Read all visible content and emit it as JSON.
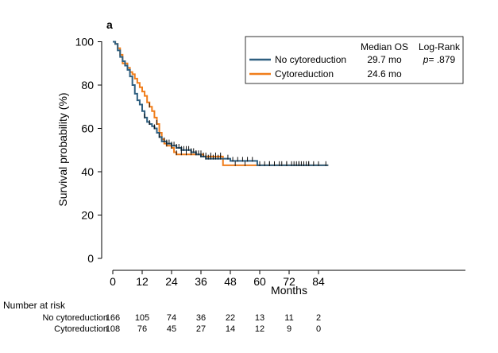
{
  "chart_data": {
    "type": "line",
    "panel_label": "a",
    "xlabel": "Months",
    "ylabel": "Survival probability (%)",
    "xlim": [
      0,
      88
    ],
    "ylim": [
      0,
      100
    ],
    "xticks": [
      0,
      12,
      24,
      36,
      48,
      60,
      72,
      84
    ],
    "yticks": [
      0,
      20,
      40,
      60,
      80,
      100
    ],
    "legend": {
      "position": "top-right",
      "header_median": "Median OS",
      "header_logrank": "Log-Rank",
      "p_label": "p",
      "p_value": "= .879"
    },
    "series": [
      {
        "name": "No cytoreduction",
        "color": "#2e5f80",
        "median": "29.7 mo",
        "steps": [
          [
            0,
            100
          ],
          [
            1,
            99
          ],
          [
            2,
            96
          ],
          [
            3,
            93
          ],
          [
            4,
            91
          ],
          [
            5,
            89
          ],
          [
            6,
            87
          ],
          [
            7,
            84
          ],
          [
            8,
            80
          ],
          [
            9,
            76
          ],
          [
            10,
            73
          ],
          [
            11,
            71
          ],
          [
            12,
            68
          ],
          [
            13,
            65
          ],
          [
            14,
            63
          ],
          [
            15,
            62
          ],
          [
            16,
            61
          ],
          [
            17,
            60
          ],
          [
            18,
            58
          ],
          [
            19,
            56
          ],
          [
            20,
            54
          ],
          [
            22,
            53
          ],
          [
            24,
            52
          ],
          [
            26,
            51
          ],
          [
            28,
            50
          ],
          [
            30,
            50
          ],
          [
            32,
            49
          ],
          [
            34,
            48
          ],
          [
            36,
            47
          ],
          [
            38,
            46
          ],
          [
            40,
            46
          ],
          [
            44,
            46
          ],
          [
            48,
            45
          ],
          [
            52,
            45
          ],
          [
            58,
            45
          ],
          [
            59,
            43
          ],
          [
            70,
            43
          ],
          [
            88,
            43
          ]
        ],
        "censor_times": [
          13,
          15,
          17,
          19,
          21,
          22,
          23,
          24,
          25,
          26,
          27,
          28,
          29,
          30,
          31,
          32,
          33,
          34,
          35,
          36,
          37,
          38,
          39,
          40,
          41,
          42,
          43,
          44,
          47,
          49,
          51,
          53,
          55,
          57,
          60,
          62,
          64,
          66,
          69,
          71,
          73,
          75,
          76,
          77,
          78,
          79,
          80,
          84,
          87
        ]
      },
      {
        "name": "Cytoreduction",
        "color": "#f07d1a",
        "median": "24.6 mo",
        "steps": [
          [
            0,
            100
          ],
          [
            1,
            99
          ],
          [
            2,
            97
          ],
          [
            3,
            94
          ],
          [
            4,
            90
          ],
          [
            6,
            88
          ],
          [
            7,
            86
          ],
          [
            8,
            85
          ],
          [
            9,
            83
          ],
          [
            10,
            81
          ],
          [
            11,
            79
          ],
          [
            12,
            77
          ],
          [
            13,
            75
          ],
          [
            14,
            72
          ],
          [
            15,
            70
          ],
          [
            16,
            68
          ],
          [
            17,
            65
          ],
          [
            18,
            62
          ],
          [
            19,
            58
          ],
          [
            20,
            55
          ],
          [
            21,
            53
          ],
          [
            22,
            52
          ],
          [
            24,
            51
          ],
          [
            25,
            49
          ],
          [
            26,
            48
          ],
          [
            30,
            48
          ],
          [
            34,
            48
          ],
          [
            36,
            48
          ],
          [
            37,
            47
          ],
          [
            44,
            47
          ],
          [
            45,
            43
          ],
          [
            56,
            43
          ],
          [
            58,
            43
          ],
          [
            70,
            43
          ],
          [
            88,
            43
          ]
        ],
        "censor_times": [
          15,
          18,
          22,
          24,
          26,
          28,
          30,
          32,
          34,
          36,
          38,
          40,
          42,
          44,
          50,
          54,
          60,
          64,
          68,
          71,
          74,
          76,
          78,
          80,
          82
        ]
      }
    ]
  },
  "risk_table": {
    "title": "Number at risk",
    "rows": [
      {
        "label": "No cytoreduction",
        "values": [
          "166",
          "105",
          "74",
          "36",
          "22",
          "13",
          "11",
          "2"
        ]
      },
      {
        "label": "Cytoreduction",
        "values": [
          "108",
          "76",
          "45",
          "27",
          "14",
          "12",
          "9",
          "0"
        ]
      }
    ]
  }
}
